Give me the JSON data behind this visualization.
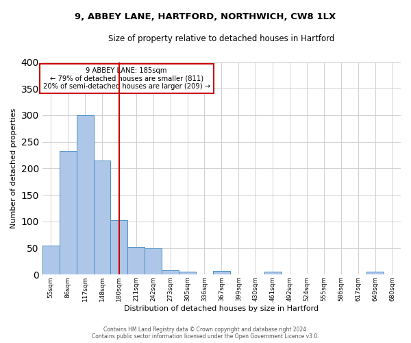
{
  "title": "9, ABBEY LANE, HARTFORD, NORTHWICH, CW8 1LX",
  "subtitle": "Size of property relative to detached houses in Hartford",
  "xlabel": "Distribution of detached houses by size in Hartford",
  "ylabel": "Number of detached properties",
  "bar_labels": [
    "55sqm",
    "86sqm",
    "117sqm",
    "148sqm",
    "180sqm",
    "211sqm",
    "242sqm",
    "273sqm",
    "305sqm",
    "336sqm",
    "367sqm",
    "399sqm",
    "430sqm",
    "461sqm",
    "492sqm",
    "524sqm",
    "555sqm",
    "586sqm",
    "617sqm",
    "649sqm",
    "680sqm"
  ],
  "bar_values": [
    54,
    233,
    300,
    215,
    103,
    52,
    49,
    8,
    6,
    0,
    7,
    0,
    0,
    5,
    0,
    0,
    0,
    0,
    0,
    5,
    0
  ],
  "bar_color": "#aec6e8",
  "bar_edge_color": "#4a90c4",
  "vline_x": 4,
  "vline_color": "#cc0000",
  "ylim": [
    0,
    400
  ],
  "yticks": [
    0,
    50,
    100,
    150,
    200,
    250,
    300,
    350,
    400
  ],
  "annotation_line1": "9 ABBEY LANE: 185sqm",
  "annotation_line2": "← 79% of detached houses are smaller (811)",
  "annotation_line3": "20% of semi-detached houses are larger (209) →",
  "annotation_box_color": "#ffffff",
  "annotation_box_edge": "#cc0000",
  "footer_line1": "Contains HM Land Registry data © Crown copyright and database right 2024.",
  "footer_line2": "Contains public sector information licensed under the Open Government Licence v3.0.",
  "background_color": "#ffffff",
  "grid_color": "#d0d0d0",
  "fig_width": 6.0,
  "fig_height": 5.0,
  "dpi": 100
}
